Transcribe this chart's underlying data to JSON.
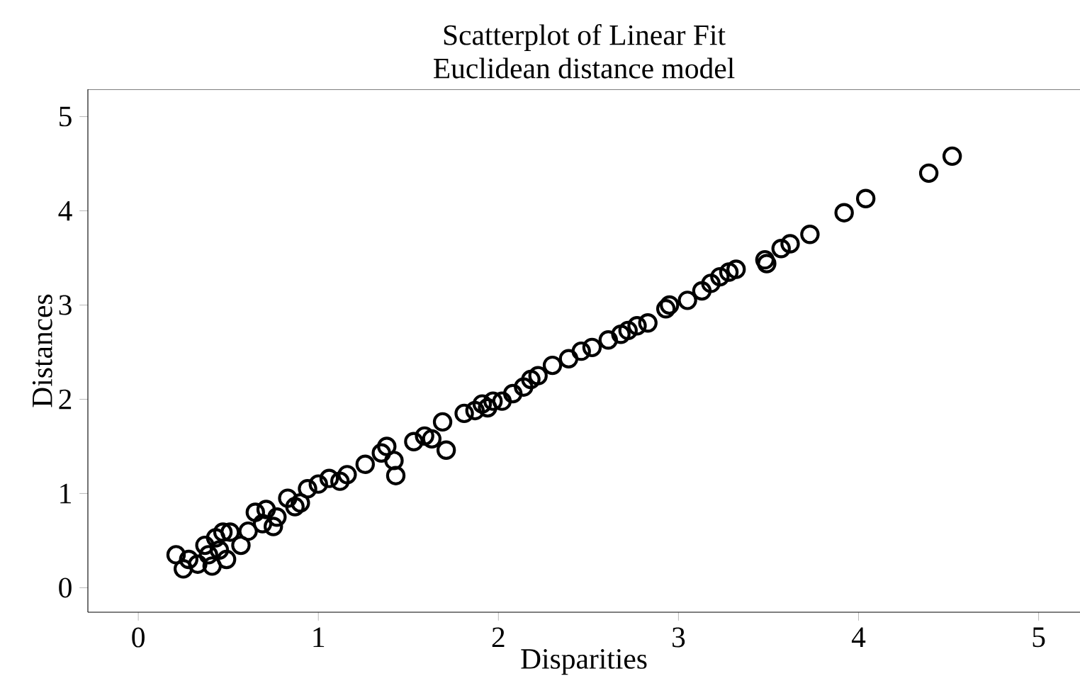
{
  "chart_data": {
    "type": "scatter",
    "title": "Scatterplot of Linear Fit",
    "subtitle": "Euclidean distance model",
    "xlabel": "Disparities",
    "ylabel": "Distances",
    "x": [
      0.21,
      0.25,
      0.28,
      0.33,
      0.37,
      0.39,
      0.41,
      0.43,
      0.45,
      0.47,
      0.49,
      0.51,
      0.57,
      0.61,
      0.65,
      0.69,
      0.71,
      0.75,
      0.77,
      0.83,
      0.87,
      0.9,
      0.94,
      1.0,
      1.06,
      1.12,
      1.16,
      1.26,
      1.35,
      1.38,
      1.42,
      1.43,
      1.53,
      1.59,
      1.63,
      1.69,
      1.71,
      1.81,
      1.87,
      1.91,
      1.94,
      1.97,
      2.02,
      2.08,
      2.14,
      2.18,
      2.22,
      2.3,
      2.39,
      2.46,
      2.52,
      2.61,
      2.68,
      2.72,
      2.77,
      2.83,
      2.93,
      2.95,
      3.05,
      3.13,
      3.18,
      3.23,
      3.28,
      3.32,
      3.48,
      3.49,
      3.57,
      3.62,
      3.73,
      3.92,
      4.04,
      4.39,
      4.52
    ],
    "values": [
      0.35,
      0.2,
      0.3,
      0.25,
      0.45,
      0.35,
      0.23,
      0.53,
      0.4,
      0.59,
      0.3,
      0.59,
      0.45,
      0.6,
      0.8,
      0.68,
      0.83,
      0.65,
      0.75,
      0.95,
      0.86,
      0.9,
      1.05,
      1.1,
      1.16,
      1.13,
      1.2,
      1.31,
      1.43,
      1.5,
      1.35,
      1.19,
      1.55,
      1.61,
      1.58,
      1.76,
      1.46,
      1.85,
      1.88,
      1.95,
      1.91,
      1.98,
      1.98,
      2.06,
      2.13,
      2.21,
      2.25,
      2.36,
      2.43,
      2.51,
      2.55,
      2.63,
      2.69,
      2.73,
      2.78,
      2.81,
      2.96,
      3.0,
      3.05,
      3.15,
      3.23,
      3.3,
      3.35,
      3.38,
      3.48,
      3.44,
      3.6,
      3.65,
      3.75,
      3.98,
      4.13,
      4.4,
      4.58
    ],
    "color": "#000000",
    "marker": "circle",
    "xlim": [
      -0.28,
      5.23
    ],
    "ylim": [
      -0.26,
      5.29
    ],
    "xticks": [
      0,
      1,
      2,
      3,
      4,
      5
    ],
    "yticks": [
      0,
      1,
      2,
      3,
      4,
      5
    ]
  }
}
